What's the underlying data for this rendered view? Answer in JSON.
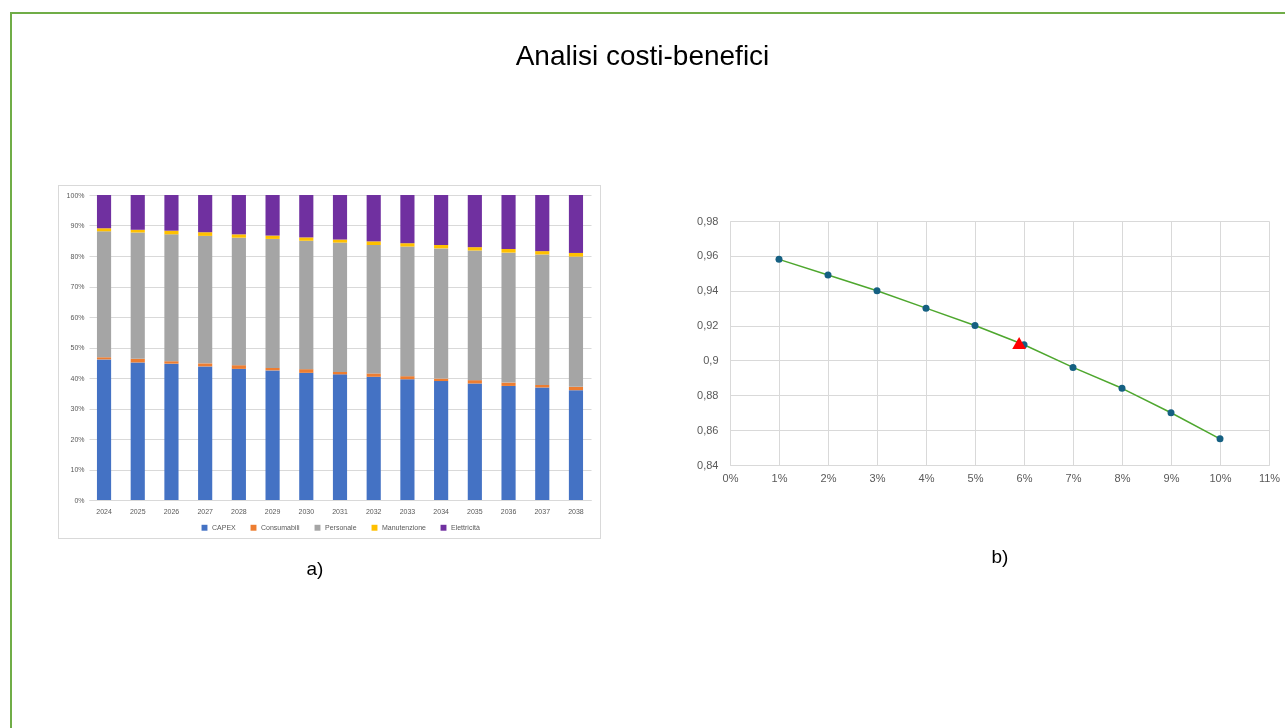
{
  "chart_data": [
    {
      "type": "bar",
      "title": "Analisi costi-benefici",
      "annotations": [
        "a)"
      ],
      "categories": [
        "2024",
        "2025",
        "2026",
        "2027",
        "2028",
        "2029",
        "2030",
        "2031",
        "2032",
        "2033",
        "2034",
        "2035",
        "2036",
        "2037",
        "2038"
      ],
      "stacked": true,
      "series": [
        {
          "name": "CAPEX",
          "color": "#4472c4",
          "values": [
            46.1,
            45.1,
            44.7,
            43.8,
            43.0,
            42.5,
            41.7,
            41.2,
            40.4,
            39.6,
            39.0,
            38.2,
            37.4,
            36.9,
            36.0
          ]
        },
        {
          "name": "Consumabili",
          "color": "#ed7d31",
          "values": [
            0.7,
            1.2,
            0.8,
            1.0,
            1.2,
            0.8,
            1.2,
            0.8,
            1.1,
            1.0,
            0.8,
            1.1,
            1.1,
            0.8,
            1.1
          ]
        },
        {
          "name": "Personale",
          "color": "#a5a5a5",
          "values": [
            41.3,
            41.4,
            41.6,
            41.8,
            41.8,
            42.3,
            42.1,
            42.4,
            42.1,
            42.5,
            42.7,
            42.5,
            42.6,
            42.8,
            42.7
          ]
        },
        {
          "name": "Manutenzione",
          "color": "#ffc000",
          "values": [
            1.0,
            0.9,
            1.2,
            1.2,
            1.1,
            1.1,
            1.1,
            1.0,
            1.2,
            1.1,
            1.1,
            1.1,
            1.2,
            1.1,
            1.2
          ]
        },
        {
          "name": "Elettricità",
          "color": "#7030a0",
          "values": [
            10.9,
            11.4,
            11.7,
            12.2,
            12.9,
            13.3,
            13.9,
            14.6,
            15.2,
            15.8,
            16.4,
            17.1,
            17.7,
            18.4,
            19.0
          ]
        }
      ],
      "ylim": [
        0,
        100
      ],
      "yticks": [
        {
          "value": 0,
          "label": "0%"
        },
        {
          "value": 10,
          "label": "10%"
        },
        {
          "value": 20,
          "label": "20%"
        },
        {
          "value": 30,
          "label": "30%"
        },
        {
          "value": 40,
          "label": "40%"
        },
        {
          "value": 50,
          "label": "50%"
        },
        {
          "value": 60,
          "label": "60%"
        },
        {
          "value": 70,
          "label": "70%"
        },
        {
          "value": 80,
          "label": "80%"
        },
        {
          "value": 90,
          "label": "90%"
        },
        {
          "value": 100,
          "label": "100%"
        }
      ],
      "grid": "y",
      "legend": "bottom"
    },
    {
      "type": "line",
      "annotations": [
        "b)"
      ],
      "x": [
        1,
        2,
        3,
        4,
        5,
        6,
        7,
        8,
        9,
        10
      ],
      "marker": "circle",
      "grid": true,
      "series": [
        {
          "type": "line",
          "color": "#4ea72e",
          "marker": "none",
          "values": [
            0.958,
            0.949,
            0.94,
            0.93,
            0.92,
            0.909,
            0.896,
            0.884,
            0.87,
            0.855
          ]
        },
        {
          "type": "scatter",
          "color": "#156082",
          "values": [
            0.958,
            0.949,
            0.94,
            0.93,
            0.92,
            0.909,
            0.896,
            0.884,
            0.87,
            0.855
          ]
        },
        {
          "type": "scatter",
          "marker": "triangle",
          "color": "#ff0000",
          "x": [
            5.9
          ],
          "values": [
            0.91
          ]
        }
      ],
      "xlim": [
        0,
        11
      ],
      "xticks": [
        {
          "value": 0,
          "label": "0%"
        },
        {
          "value": 1,
          "label": "1%"
        },
        {
          "value": 2,
          "label": "2%"
        },
        {
          "value": 3,
          "label": "3%"
        },
        {
          "value": 4,
          "label": "4%"
        },
        {
          "value": 5,
          "label": "5%"
        },
        {
          "value": 6,
          "label": "6%"
        },
        {
          "value": 7,
          "label": "7%"
        },
        {
          "value": 8,
          "label": "8%"
        },
        {
          "value": 9,
          "label": "9%"
        },
        {
          "value": 10,
          "label": "10%"
        },
        {
          "value": 11,
          "label": "11%"
        }
      ],
      "ylim": [
        0.84,
        0.98
      ],
      "yticks": [
        {
          "value": 0.84,
          "label": "0,84"
        },
        {
          "value": 0.86,
          "label": "0,86"
        },
        {
          "value": 0.88,
          "label": "0,88"
        },
        {
          "value": 0.9,
          "label": "0,9"
        },
        {
          "value": 0.92,
          "label": "0,92"
        },
        {
          "value": 0.94,
          "label": "0,94"
        },
        {
          "value": 0.96,
          "label": "0,96"
        },
        {
          "value": 0.98,
          "label": "0,98"
        }
      ]
    }
  ]
}
